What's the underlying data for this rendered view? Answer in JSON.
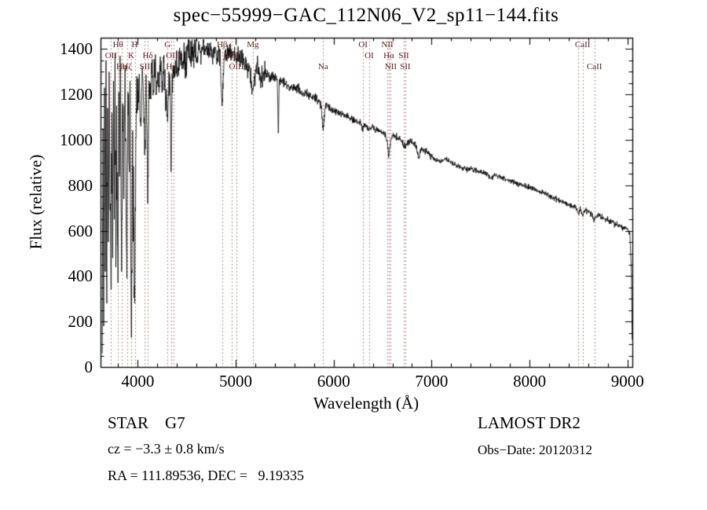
{
  "title": "spec−55999−GAC_112N06_V2_sp11−144.fits",
  "annotations": {
    "class_label": "STAR    G7",
    "survey": "LAMOST DR2",
    "cz": "cz = −3.3 ± 0.8 km/s",
    "obs_date": "Obs−Date: 20120312",
    "ra_dec": "RA = 111.89536, DEC =   9.19335"
  },
  "chart_data": {
    "type": "line",
    "title": "spec−55999−GAC_112N06_V2_sp11−144.fits",
    "xlabel": "Wavelength (Å)",
    "ylabel": "Flux (relative)",
    "xlim": [
      3620,
      9050
    ],
    "ylim": [
      0,
      1450
    ],
    "x_ticks": [
      4000,
      5000,
      6000,
      7000,
      8000,
      9000
    ],
    "y_ticks": [
      0,
      200,
      400,
      600,
      800,
      1000,
      1200,
      1400
    ],
    "x_minor_step": 200,
    "y_minor_step": 50,
    "grid": false,
    "line_color": "#000000",
    "marker_line_color": "#aa6655",
    "label_color": "#5a2222",
    "spectral_lines": [
      {
        "label": "OII",
        "wl": 3727,
        "row": 2
      },
      {
        "label": "Hθ",
        "wl": 3798,
        "row": 1
      },
      {
        "label": "Hη",
        "wl": 3835,
        "row": 3
      },
      {
        "label": "Hζ",
        "wl": 3889,
        "row": 3
      },
      {
        "label": "K",
        "wl": 3934,
        "row": 2
      },
      {
        "label": "H",
        "wl": 3969,
        "row": 1
      },
      {
        "label": "SII",
        "wl": 4072,
        "row": 3
      },
      {
        "label": "Hδ",
        "wl": 4102,
        "row": 2
      },
      {
        "label": "G",
        "wl": 4304,
        "row": 1
      },
      {
        "label": "Hγ",
        "wl": 4340,
        "row": 3
      },
      {
        "label": "OIII",
        "wl": 4363,
        "row": 2
      },
      {
        "label": "Hβ",
        "wl": 4861,
        "row": 1
      },
      {
        "label": "OIII",
        "wl": 4959,
        "row": 2
      },
      {
        "label": "OIII",
        "wl": 5007,
        "row": 3
      },
      {
        "label": "Mg",
        "wl": 5175,
        "row": 1
      },
      {
        "label": "Na",
        "wl": 5893,
        "row": 3
      },
      {
        "label": "OI",
        "wl": 6300,
        "row": 1
      },
      {
        "label": "OI",
        "wl": 6363,
        "row": 2
      },
      {
        "label": "NII",
        "wl": 6548,
        "row": 1
      },
      {
        "label": "Hα",
        "wl": 6563,
        "row": 2
      },
      {
        "label": "NII",
        "wl": 6583,
        "row": 3
      },
      {
        "label": "SII",
        "wl": 6716,
        "row": 2
      },
      {
        "label": "SII",
        "wl": 6731,
        "row": 3
      },
      {
        "label": "",
        "wl": 8498,
        "row": 1
      },
      {
        "label": "CaII",
        "wl": 8542,
        "row": 1
      },
      {
        "label": "CaII",
        "wl": 8662,
        "row": 3
      }
    ],
    "noise_regions": [
      [
        3620,
        4000,
        270
      ],
      [
        4000,
        4600,
        100
      ],
      [
        4600,
        5300,
        55
      ],
      [
        5300,
        5900,
        28
      ],
      [
        5900,
        7000,
        20
      ],
      [
        7000,
        8200,
        15
      ],
      [
        8200,
        9050,
        16
      ]
    ],
    "series": [
      {
        "name": "spectrum",
        "points": [
          [
            3638,
            60
          ],
          [
            3645,
            1050
          ],
          [
            3652,
            180
          ],
          [
            3660,
            1230
          ],
          [
            3668,
            420
          ],
          [
            3676,
            1350
          ],
          [
            3684,
            280
          ],
          [
            3692,
            1140
          ],
          [
            3700,
            550
          ],
          [
            3708,
            1300
          ],
          [
            3716,
            700
          ],
          [
            3727,
            340
          ],
          [
            3736,
            1120
          ],
          [
            3744,
            480
          ],
          [
            3752,
            1260
          ],
          [
            3760,
            650
          ],
          [
            3768,
            1380
          ],
          [
            3776,
            440
          ],
          [
            3784,
            1150
          ],
          [
            3791,
            700
          ],
          [
            3798,
            370
          ],
          [
            3806,
            1210
          ],
          [
            3814,
            840
          ],
          [
            3822,
            1300
          ],
          [
            3835,
            420
          ],
          [
            3846,
            1160
          ],
          [
            3858,
            740
          ],
          [
            3870,
            1320
          ],
          [
            3882,
            600
          ],
          [
            3889,
            390
          ],
          [
            3900,
            1210
          ],
          [
            3912,
            890
          ],
          [
            3921,
            1260
          ],
          [
            3934,
            130
          ],
          [
            3946,
            950
          ],
          [
            3958,
            690
          ],
          [
            3969,
            280
          ],
          [
            3980,
            1010
          ],
          [
            3990,
            1280
          ],
          [
            4000,
            1150
          ],
          [
            4015,
            1290
          ],
          [
            4030,
            1060
          ],
          [
            4045,
            1320
          ],
          [
            4060,
            1150
          ],
          [
            4072,
            950
          ],
          [
            4086,
            1280
          ],
          [
            4102,
            720
          ],
          [
            4115,
            1260
          ],
          [
            4130,
            1180
          ],
          [
            4145,
            1310
          ],
          [
            4160,
            1220
          ],
          [
            4175,
            1340
          ],
          [
            4190,
            1200
          ],
          [
            4205,
            1300
          ],
          [
            4220,
            1240
          ],
          [
            4235,
            1330
          ],
          [
            4250,
            1260
          ],
          [
            4265,
            1340
          ],
          [
            4280,
            1220
          ],
          [
            4304,
            1080
          ],
          [
            4318,
            1300
          ],
          [
            4330,
            1240
          ],
          [
            4340,
            860
          ],
          [
            4352,
            1290
          ],
          [
            4365,
            1330
          ],
          [
            4380,
            1280
          ],
          [
            4395,
            1350
          ],
          [
            4410,
            1300
          ],
          [
            4430,
            1380
          ],
          [
            4450,
            1320
          ],
          [
            4470,
            1390
          ],
          [
            4490,
            1340
          ],
          [
            4510,
            1400
          ],
          [
            4530,
            1350
          ],
          [
            4550,
            1410
          ],
          [
            4570,
            1360
          ],
          [
            4590,
            1420
          ],
          [
            4610,
            1370
          ],
          [
            4630,
            1420
          ],
          [
            4650,
            1380
          ],
          [
            4670,
            1430
          ],
          [
            4690,
            1390
          ],
          [
            4710,
            1420
          ],
          [
            4730,
            1380
          ],
          [
            4750,
            1410
          ],
          [
            4770,
            1370
          ],
          [
            4790,
            1400
          ],
          [
            4810,
            1360
          ],
          [
            4830,
            1390
          ],
          [
            4845,
            1330
          ],
          [
            4861,
            1150
          ],
          [
            4880,
            1360
          ],
          [
            4900,
            1400
          ],
          [
            4920,
            1370
          ],
          [
            4940,
            1400
          ],
          [
            4960,
            1360
          ],
          [
            4980,
            1390
          ],
          [
            5000,
            1350
          ],
          [
            5020,
            1380
          ],
          [
            5040,
            1340
          ],
          [
            5060,
            1370
          ],
          [
            5080,
            1330
          ],
          [
            5100,
            1350
          ],
          [
            5120,
            1310
          ],
          [
            5140,
            1330
          ],
          [
            5167,
            1200
          ],
          [
            5183,
            1240
          ],
          [
            5200,
            1310
          ],
          [
            5220,
            1330
          ],
          [
            5240,
            1300
          ],
          [
            5260,
            1280
          ],
          [
            5280,
            1300
          ],
          [
            5300,
            1290
          ],
          [
            5330,
            1280
          ],
          [
            5360,
            1270
          ],
          [
            5390,
            1275
          ],
          [
            5425,
            1260
          ],
          [
            5435,
            1030
          ],
          [
            5445,
            1255
          ],
          [
            5480,
            1260
          ],
          [
            5510,
            1245
          ],
          [
            5540,
            1235
          ],
          [
            5570,
            1240
          ],
          [
            5600,
            1225
          ],
          [
            5630,
            1230
          ],
          [
            5660,
            1215
          ],
          [
            5690,
            1205
          ],
          [
            5720,
            1210
          ],
          [
            5750,
            1195
          ],
          [
            5780,
            1185
          ],
          [
            5810,
            1190
          ],
          [
            5840,
            1175
          ],
          [
            5870,
            1165
          ],
          [
            5893,
            1040
          ],
          [
            5915,
            1150
          ],
          [
            5940,
            1145
          ],
          [
            5970,
            1135
          ],
          [
            6000,
            1130
          ],
          [
            6040,
            1120
          ],
          [
            6080,
            1115
          ],
          [
            6120,
            1105
          ],
          [
            6160,
            1100
          ],
          [
            6200,
            1090
          ],
          [
            6240,
            1080
          ],
          [
            6280,
            1070
          ],
          [
            6300,
            1045
          ],
          [
            6320,
            1065
          ],
          [
            6360,
            1050
          ],
          [
            6400,
            1055
          ],
          [
            6440,
            1040
          ],
          [
            6480,
            1035
          ],
          [
            6520,
            1025
          ],
          [
            6545,
            1000
          ],
          [
            6563,
            925
          ],
          [
            6585,
            1005
          ],
          [
            6610,
            1020
          ],
          [
            6650,
            1010
          ],
          [
            6690,
            1000
          ],
          [
            6716,
            975
          ],
          [
            6731,
            970
          ],
          [
            6760,
            995
          ],
          [
            6800,
            985
          ],
          [
            6840,
            975
          ],
          [
            6868,
            925
          ],
          [
            6890,
            960
          ],
          [
            6920,
            955
          ],
          [
            6950,
            945
          ],
          [
            6980,
            935
          ],
          [
            7010,
            920
          ],
          [
            7050,
            910
          ],
          [
            7090,
            905
          ],
          [
            7130,
            915
          ],
          [
            7170,
            910
          ],
          [
            7210,
            900
          ],
          [
            7250,
            890
          ],
          [
            7290,
            880
          ],
          [
            7330,
            875
          ],
          [
            7370,
            870
          ],
          [
            7410,
            875
          ],
          [
            7450,
            865
          ],
          [
            7490,
            860
          ],
          [
            7530,
            855
          ],
          [
            7570,
            850
          ],
          [
            7605,
            830
          ],
          [
            7640,
            845
          ],
          [
            7680,
            840
          ],
          [
            7720,
            835
          ],
          [
            7760,
            825
          ],
          [
            7800,
            820
          ],
          [
            7840,
            815
          ],
          [
            7880,
            805
          ],
          [
            7920,
            800
          ],
          [
            7960,
            795
          ],
          [
            8000,
            790
          ],
          [
            8040,
            785
          ],
          [
            8080,
            775
          ],
          [
            8120,
            770
          ],
          [
            8160,
            765
          ],
          [
            8200,
            755
          ],
          [
            8240,
            745
          ],
          [
            8280,
            740
          ],
          [
            8320,
            730
          ],
          [
            8360,
            725
          ],
          [
            8400,
            715
          ],
          [
            8440,
            710
          ],
          [
            8470,
            705
          ],
          [
            8498,
            680
          ],
          [
            8520,
            695
          ],
          [
            8542,
            665
          ],
          [
            8570,
            690
          ],
          [
            8600,
            685
          ],
          [
            8630,
            675
          ],
          [
            8662,
            645
          ],
          [
            8690,
            670
          ],
          [
            8720,
            665
          ],
          [
            8750,
            655
          ],
          [
            8780,
            650
          ],
          [
            8810,
            645
          ],
          [
            8840,
            640
          ],
          [
            8870,
            630
          ],
          [
            8900,
            625
          ],
          [
            8930,
            620
          ],
          [
            8960,
            615
          ],
          [
            8990,
            610
          ],
          [
            9010,
            600
          ],
          [
            9025,
            590
          ],
          [
            9040,
            420
          ],
          [
            9048,
            120
          ]
        ]
      }
    ]
  }
}
